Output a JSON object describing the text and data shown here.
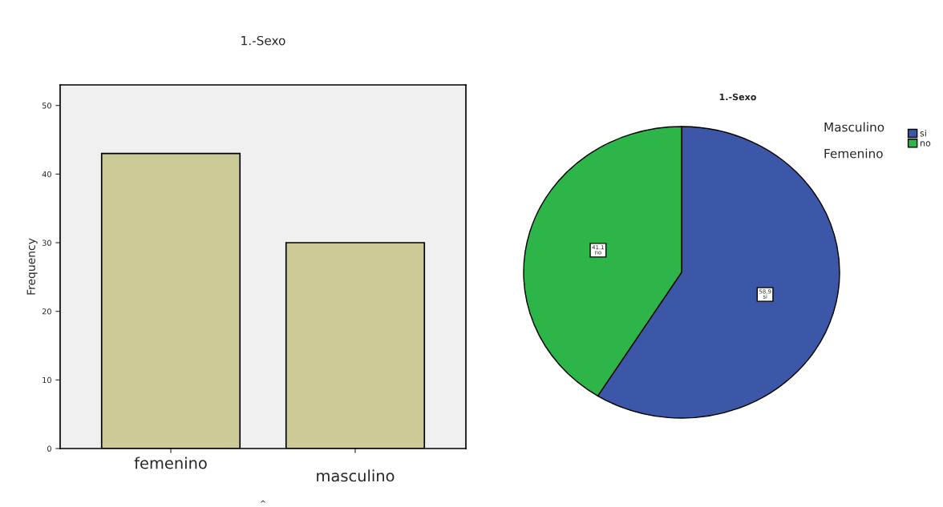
{
  "chart_data": [
    {
      "type": "bar",
      "title": "1.-Sexo",
      "xlabel": "^",
      "ylabel": "Frequency",
      "categories": [
        "femenino",
        "masculino"
      ],
      "values": [
        43,
        30
      ],
      "color": "#cccb98",
      "ylim": [
        0,
        53
      ],
      "yticks": [
        0,
        10,
        20,
        30,
        40,
        50
      ],
      "grid": false,
      "legend": false
    },
    {
      "type": "pie",
      "title": "1.-Sexo",
      "categories": [
        "si",
        "no"
      ],
      "values": [
        58.9,
        41.1
      ],
      "colors": [
        "#3c56a8",
        "#2db54a"
      ],
      "value_labels": [
        "58.9\nsi",
        "41.1\nno"
      ],
      "legend": "top right",
      "annotations": [
        "Masculino",
        "Femenino"
      ]
    }
  ]
}
